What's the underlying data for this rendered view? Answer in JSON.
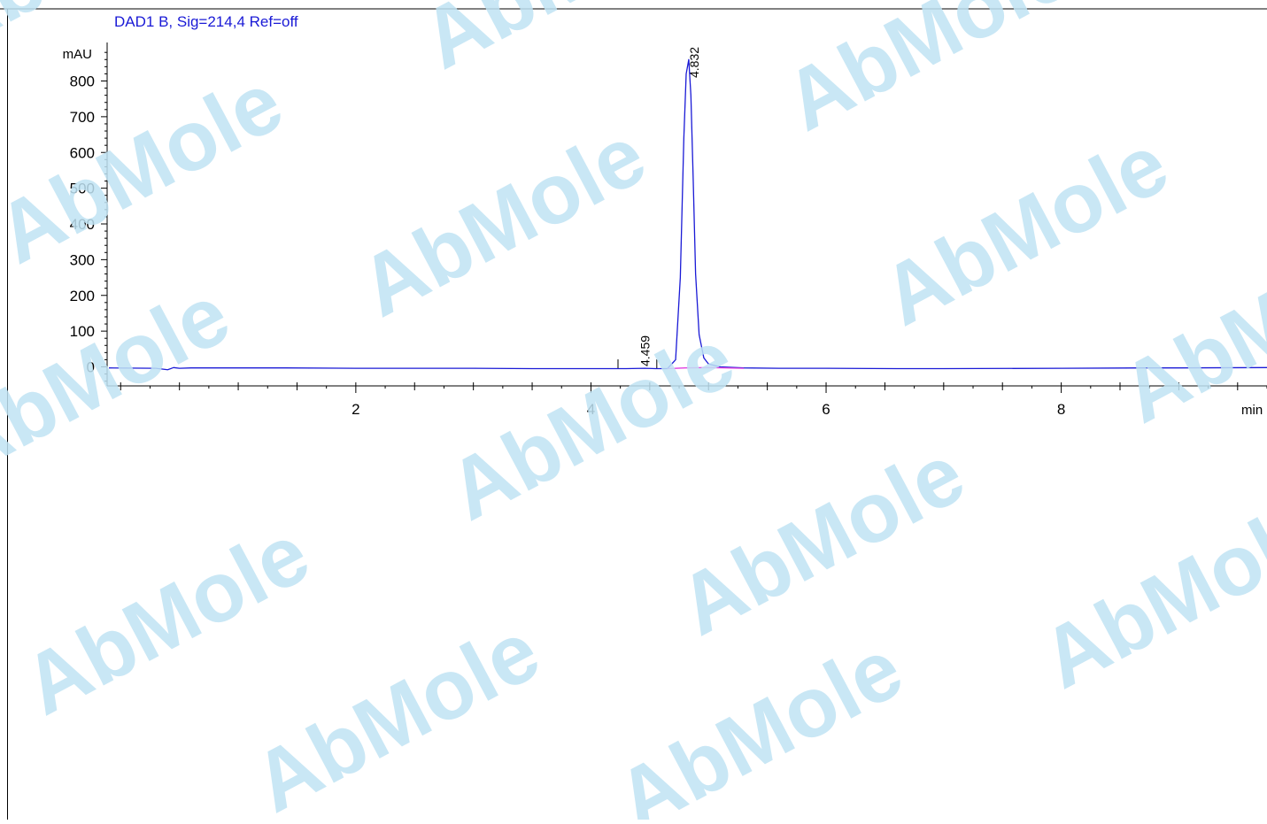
{
  "watermark": {
    "brand": "AbMole",
    "text_color": "#bfe3f3",
    "accent_color": "#fde7a8"
  },
  "chart_data": {
    "type": "line",
    "title": "DAD1 B, Sig=214,4 Ref=off",
    "ylabel": "mAU",
    "xlabel": "min",
    "xlim": [
      -0.1,
      9.75
    ],
    "ylim": [
      -50,
      890
    ],
    "x_ticks": [
      2,
      4,
      6,
      8
    ],
    "y_ticks": [
      0,
      100,
      200,
      300,
      400,
      500,
      600,
      700,
      800
    ],
    "grid": false,
    "series": [
      {
        "color": "#1a1ad6",
        "x": [
          -0.1,
          0.3,
          0.4,
          0.45,
          0.5,
          0.6,
          0.7,
          1.0,
          1.4,
          2.0,
          3.0,
          3.5,
          4.0,
          4.3,
          4.459,
          4.55,
          4.65,
          4.72,
          4.76,
          4.79,
          4.81,
          4.832,
          4.85,
          4.87,
          4.89,
          4.92,
          4.96,
          5.0,
          5.1,
          5.3,
          5.6,
          6.0,
          6.6,
          7.0,
          8.0,
          8.7,
          9.0,
          9.75
        ],
        "y": [
          -3,
          -4,
          -8,
          -2,
          -4,
          -3,
          -3,
          -3,
          -3,
          -4,
          -4,
          -5,
          -5,
          -5,
          -4,
          -5,
          -5,
          20,
          250,
          640,
          820,
          860,
          760,
          520,
          260,
          90,
          25,
          8,
          0,
          -3,
          -4,
          -4,
          -5,
          -5,
          -4,
          -3,
          -3,
          -2
        ]
      },
      {
        "color": "#e040e0",
        "x": [
          4.65,
          4.8,
          5.0,
          5.3
        ],
        "y": [
          -5,
          -3,
          -2,
          -4
        ]
      }
    ],
    "peaks": [
      {
        "rt": 4.459,
        "label": "4.459"
      },
      {
        "rt": 4.832,
        "label": "4.832"
      }
    ]
  }
}
